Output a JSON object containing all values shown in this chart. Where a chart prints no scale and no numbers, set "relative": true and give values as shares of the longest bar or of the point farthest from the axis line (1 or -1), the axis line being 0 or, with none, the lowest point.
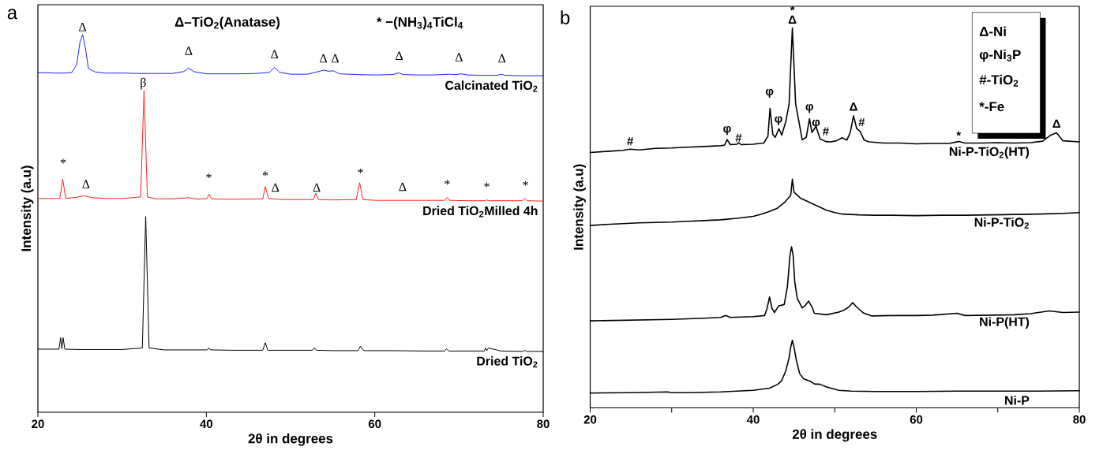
{
  "chart_data": [
    {
      "type": "line",
      "title": "a",
      "xlabel": "2θ in degrees",
      "ylabel": "Intensity (a.u)",
      "relative": true,
      "xlim": [
        20,
        80
      ],
      "xticks": [
        20,
        40,
        60,
        80
      ],
      "series": [
        {
          "name": "Calcinated TiO$_{2}$",
          "color": "#2020ff",
          "x": [
            20,
            21,
            22,
            23,
            24,
            24.6,
            25.0,
            25.3,
            25.6,
            26.0,
            26.8,
            28,
            30,
            32,
            34,
            36,
            37.3,
            37.9,
            38.5,
            40,
            42,
            44,
            46,
            47.5,
            48.1,
            48.7,
            50,
            52,
            53.5,
            53.9,
            54.5,
            55.1,
            55.8,
            58,
            60,
            62.2,
            62.8,
            63.4,
            65,
            67,
            68.9,
            69.6,
            70.3,
            71,
            73,
            74.5,
            75.0,
            75.5,
            77,
            80
          ],
          "values": [
            0.899,
            0.899,
            0.898,
            0.898,
            0.899,
            0.92,
            0.98,
            1.0,
            0.97,
            0.91,
            0.901,
            0.898,
            0.898,
            0.897,
            0.897,
            0.897,
            0.902,
            0.911,
            0.902,
            0.896,
            0.896,
            0.896,
            0.897,
            0.9,
            0.913,
            0.9,
            0.895,
            0.895,
            0.903,
            0.906,
            0.903,
            0.904,
            0.896,
            0.894,
            0.893,
            0.894,
            0.899,
            0.894,
            0.893,
            0.893,
            0.895,
            0.894,
            0.896,
            0.893,
            0.892,
            0.892,
            0.895,
            0.892,
            0.891,
            0.891
          ]
        },
        {
          "name": "Dried TiO$_{2}$Milled 4h",
          "color": "#ff2020",
          "x": [
            20,
            22.6,
            22.95,
            23.3,
            24.5,
            25.5,
            26.5,
            28,
            30,
            32.2,
            32.6,
            33.0,
            34,
            36,
            37.9,
            39,
            40.1,
            40.3,
            40.6,
            42,
            44,
            46.7,
            47.0,
            47.4,
            49,
            51,
            52.7,
            53.0,
            53.3,
            55,
            57.8,
            58.2,
            58.6,
            60,
            62,
            64,
            66,
            68.3,
            68.6,
            68.9,
            71,
            73.1,
            73.3,
            73.6,
            75,
            77.5,
            77.8,
            78.1,
            80
          ],
          "values": [
            0.566,
            0.566,
            0.617,
            0.566,
            0.569,
            0.573,
            0.568,
            0.566,
            0.566,
            0.57,
            0.852,
            0.57,
            0.565,
            0.565,
            0.568,
            0.564,
            0.566,
            0.578,
            0.565,
            0.564,
            0.564,
            0.565,
            0.597,
            0.566,
            0.563,
            0.563,
            0.563,
            0.58,
            0.563,
            0.562,
            0.563,
            0.608,
            0.563,
            0.561,
            0.561,
            0.561,
            0.561,
            0.561,
            0.569,
            0.561,
            0.56,
            0.56,
            0.562,
            0.56,
            0.56,
            0.56,
            0.567,
            0.56,
            0.559
          ]
        },
        {
          "name": "Dried TiO$_{2}$",
          "color": "#000000",
          "x": [
            20,
            22.5,
            22.7,
            22.85,
            23.0,
            23.2,
            25,
            28,
            30,
            32.4,
            32.8,
            33.2,
            35,
            38,
            40.1,
            40.3,
            40.5,
            43,
            46.7,
            47.0,
            47.3,
            50,
            52.6,
            52.8,
            53.1,
            55,
            58.0,
            58.3,
            58.7,
            62,
            66,
            68.3,
            68.5,
            68.8,
            71,
            73.0,
            73.15,
            73.3,
            73.5,
            75,
            77.6,
            77.8,
            78.0,
            80
          ],
          "values": [
            0.167,
            0.167,
            0.197,
            0.168,
            0.197,
            0.167,
            0.166,
            0.166,
            0.166,
            0.17,
            0.518,
            0.17,
            0.165,
            0.165,
            0.165,
            0.17,
            0.165,
            0.164,
            0.164,
            0.184,
            0.164,
            0.164,
            0.164,
            0.17,
            0.164,
            0.163,
            0.163,
            0.175,
            0.163,
            0.163,
            0.162,
            0.162,
            0.168,
            0.162,
            0.162,
            0.162,
            0.17,
            0.163,
            0.17,
            0.162,
            0.161,
            0.164,
            0.161,
            0.161
          ]
        }
      ],
      "annotations": [
        "Δ–TiO$_{2}$(Anatase)",
        "* −(NH$_{3}$)$_{4}$TiCl$_{4}$",
        "Δ",
        "Δ",
        "Δ",
        "Δ",
        "Δ",
        "Δ",
        "Δ",
        "Δ",
        "β",
        "*",
        "Δ",
        "*",
        "*",
        "Δ",
        "Δ",
        "*",
        "Δ",
        "*",
        "*",
        "*"
      ]
    },
    {
      "type": "line",
      "title": "b",
      "xlabel": "2θ in degrees",
      "ylabel": "Intensity (a.u)",
      "relative": true,
      "xlim": [
        20,
        80
      ],
      "xticks": [
        20,
        {
          "value": 30,
          "label": null
        },
        40,
        {
          "value": 50,
          "label": null
        },
        60,
        {
          "value": 70,
          "label": null
        },
        80
      ],
      "series": [
        {
          "name": "Ni-P-TiO$_{2}$(HT)",
          "color": "#000000",
          "x": [
            20,
            22,
            24,
            24.9,
            26,
            28,
            30,
            32,
            34,
            36,
            36.5,
            36.8,
            37.2,
            38.0,
            38.2,
            38.5,
            40,
            41.3,
            41.8,
            42.06,
            42.4,
            42.7,
            43.15,
            43.5,
            44.0,
            44.4,
            44.8,
            45.2,
            45.6,
            46.0,
            46.5,
            46.9,
            47.2,
            47.7,
            48.2,
            48.9,
            49.5,
            50.2,
            50.9,
            51.5,
            51.9,
            52.3,
            52.7,
            53.1,
            53.6,
            54.2,
            56,
            58,
            60,
            62,
            64,
            65.2,
            66,
            68,
            70,
            72,
            74,
            75.5,
            76.5,
            77.2,
            78,
            80
          ],
          "values": [
            0.672,
            0.675,
            0.678,
            0.681,
            0.679,
            0.683,
            0.684,
            0.686,
            0.688,
            0.69,
            0.692,
            0.706,
            0.693,
            0.694,
            0.698,
            0.693,
            0.694,
            0.697,
            0.715,
            0.788,
            0.72,
            0.712,
            0.735,
            0.718,
            0.754,
            0.8,
            1.0,
            0.8,
            0.754,
            0.706,
            0.712,
            0.761,
            0.725,
            0.741,
            0.708,
            0.701,
            0.7,
            0.703,
            0.711,
            0.705,
            0.725,
            0.769,
            0.735,
            0.728,
            0.705,
            0.7,
            0.697,
            0.697,
            0.695,
            0.696,
            0.696,
            0.701,
            0.697,
            0.697,
            0.698,
            0.697,
            0.698,
            0.702,
            0.718,
            0.724,
            0.703,
            0.7
          ]
        },
        {
          "name": "Ni-P-TiO$_{2}$",
          "color": "#000000",
          "x": [
            20,
            22,
            24,
            26,
            28,
            30,
            32,
            34,
            36,
            38,
            40,
            41,
            42,
            43,
            43.8,
            44.3,
            44.6,
            44.8,
            45.0,
            45.3,
            45.8,
            46.5,
            47.2,
            48,
            49,
            50,
            51,
            53,
            55,
            57,
            60,
            63,
            66,
            69,
            72,
            75,
            78,
            80
          ],
          "values": [
            0.48,
            0.483,
            0.485,
            0.487,
            0.488,
            0.489,
            0.491,
            0.493,
            0.495,
            0.499,
            0.504,
            0.51,
            0.517,
            0.526,
            0.54,
            0.552,
            0.56,
            0.602,
            0.568,
            0.562,
            0.552,
            0.545,
            0.538,
            0.53,
            0.52,
            0.514,
            0.51,
            0.508,
            0.507,
            0.507,
            0.506,
            0.507,
            0.507,
            0.508,
            0.509,
            0.51,
            0.512,
            0.514
          ]
        },
        {
          "name": "Ni-P(HT)",
          "color": "#000000",
          "x": [
            20,
            25,
            30,
            34,
            36,
            36.6,
            37.2,
            40,
            41.4,
            41.7,
            42.0,
            42.3,
            42.6,
            43.1,
            43.8,
            44.2,
            44.5,
            44.7,
            44.9,
            45.1,
            45.4,
            46.0,
            46.4,
            46.8,
            47.2,
            47.5,
            49,
            50.5,
            51.2,
            51.7,
            52.2,
            52.7,
            53.5,
            54.5,
            57,
            60,
            62,
            65,
            66,
            69,
            72,
            74,
            76.3,
            78,
            80
          ],
          "values": [
            0.229,
            0.231,
            0.233,
            0.236,
            0.238,
            0.243,
            0.238,
            0.24,
            0.243,
            0.262,
            0.292,
            0.262,
            0.251,
            0.268,
            0.272,
            0.32,
            0.4,
            0.424,
            0.4,
            0.33,
            0.288,
            0.263,
            0.27,
            0.281,
            0.266,
            0.249,
            0.245,
            0.252,
            0.258,
            0.265,
            0.277,
            0.265,
            0.25,
            0.242,
            0.243,
            0.243,
            0.244,
            0.249,
            0.243,
            0.244,
            0.245,
            0.248,
            0.255,
            0.251,
            0.252
          ]
        },
        {
          "name": "Ni-P",
          "color": "#000000",
          "x": [
            20,
            25,
            29.5,
            30,
            32,
            36,
            40,
            42,
            43,
            43.5,
            44,
            44.4,
            44.6,
            44.8,
            45.0,
            45.3,
            45.7,
            46.2,
            47,
            47.5,
            48.2,
            49,
            50.5,
            52,
            55,
            60,
            65,
            70,
            75,
            80
          ],
          "values": [
            0.039,
            0.04,
            0.042,
            0.04,
            0.04,
            0.042,
            0.046,
            0.052,
            0.062,
            0.072,
            0.098,
            0.132,
            0.16,
            0.178,
            0.16,
            0.124,
            0.09,
            0.076,
            0.07,
            0.063,
            0.062,
            0.055,
            0.046,
            0.044,
            0.043,
            0.043,
            0.044,
            0.044,
            0.044,
            0.045
          ]
        }
      ],
      "annotations": [
        "Δ-Ni",
        "φ-Ni$_{3}$P",
        "#-TiO$_{2}$",
        "*-Fe",
        "#",
        "φ",
        "#",
        "φ",
        "φ",
        "*",
        "Δ",
        "φ",
        "φ",
        "#",
        "Δ",
        "#",
        "*",
        "Δ"
      ]
    }
  ]
}
